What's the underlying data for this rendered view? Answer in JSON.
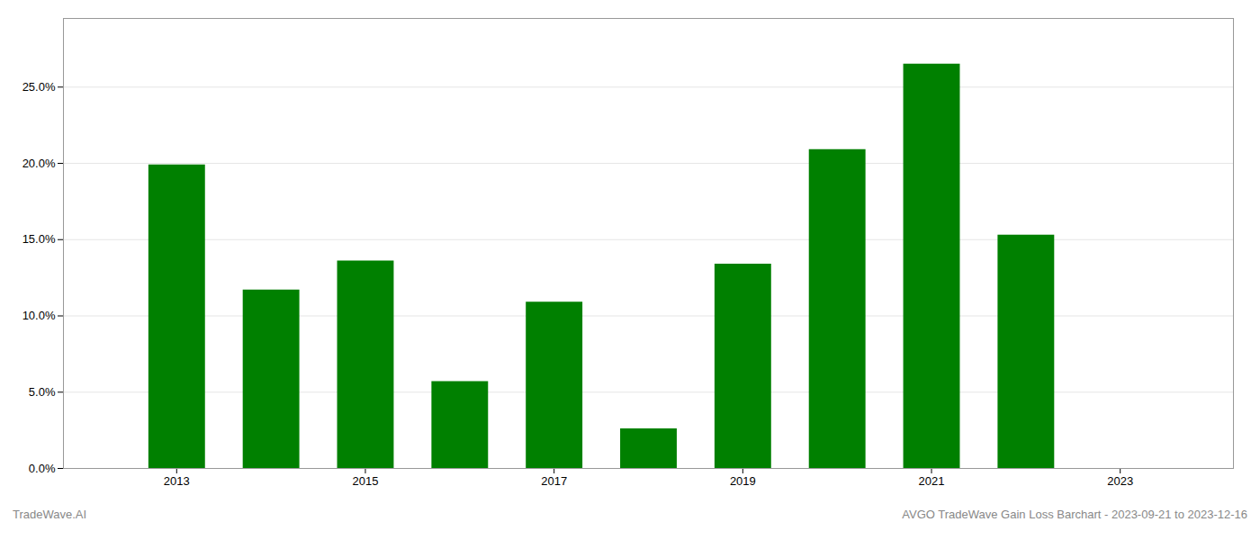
{
  "chart_data": {
    "type": "bar",
    "x": [
      2013,
      2014,
      2015,
      2016,
      2017,
      2018,
      2019,
      2020,
      2021,
      2022
    ],
    "values": [
      0.199,
      0.117,
      0.136,
      0.057,
      0.109,
      0.026,
      0.134,
      0.209,
      0.265,
      0.153
    ],
    "color": "#008000",
    "xlim": [
      2011.8,
      2024.2
    ],
    "xticks": [
      2013,
      2015,
      2017,
      2019,
      2021,
      2023
    ],
    "ylim": [
      0,
      0.295
    ],
    "yticks": [
      {
        "value": 0.0,
        "label": "0.0%"
      },
      {
        "value": 0.05,
        "label": "5.0%"
      },
      {
        "value": 0.1,
        "label": "10.0%"
      },
      {
        "value": 0.15,
        "label": "15.0%"
      },
      {
        "value": 0.2,
        "label": "20.0%"
      },
      {
        "value": 0.25,
        "label": "25.0%"
      }
    ],
    "grid": true,
    "annotations": [
      "TradeWave.AI",
      "AVGO TradeWave Gain Loss Barchart - 2023-09-21 to 2023-12-16"
    ]
  }
}
